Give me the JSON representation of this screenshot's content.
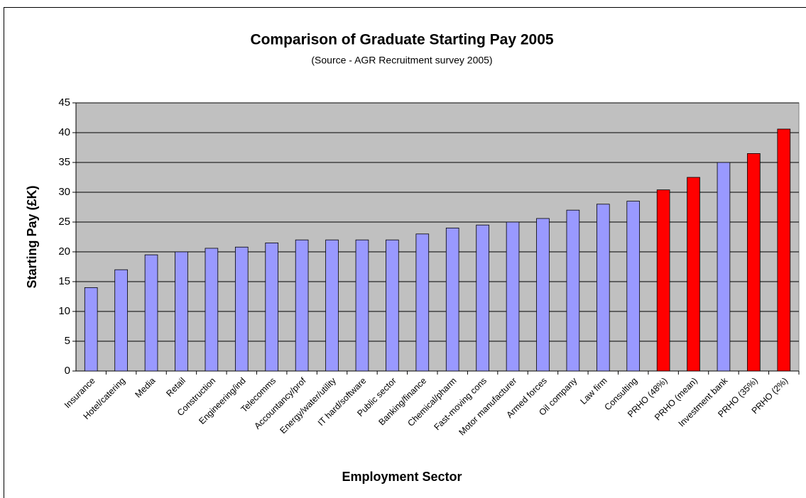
{
  "chart_data": {
    "type": "bar",
    "title": "Comparison of Graduate Starting Pay 2005",
    "subtitle": "(Source - AGR Recruitment survey 2005)",
    "x_label": "Employment Sector",
    "y_label": "Starting Pay (£K)",
    "categories": [
      "Insurance",
      "Hotel/catering",
      "Media",
      "Retail",
      "Construction",
      "Engineering/ind",
      "Telecomms",
      "Accountancy/prof",
      "Energy/water/utility",
      "IT hard/software",
      "Public sector",
      "Banking/finance",
      "Chemical/pharm",
      "Fast-moving cons",
      "Motor manufacturer",
      "Armed forces",
      "Oil company",
      "Law firm",
      "Consulting",
      "PRHO (48%)",
      "PRHO (mean)",
      "Investment bank",
      "PRHO (35%)",
      "PRHO (2%)"
    ],
    "values": [
      14,
      17,
      19.5,
      20,
      20.6,
      20.8,
      21.5,
      22,
      22,
      22,
      22,
      23,
      24,
      24.5,
      25,
      25.6,
      27,
      28,
      28.5,
      30.4,
      32.5,
      35,
      36.5,
      40.6
    ],
    "colors": [
      "#9999ff",
      "#9999ff",
      "#9999ff",
      "#9999ff",
      "#9999ff",
      "#9999ff",
      "#9999ff",
      "#9999ff",
      "#9999ff",
      "#9999ff",
      "#9999ff",
      "#9999ff",
      "#9999ff",
      "#9999ff",
      "#9999ff",
      "#9999ff",
      "#9999ff",
      "#9999ff",
      "#9999ff",
      "#ff0000",
      "#ff0000",
      "#9999ff",
      "#ff0000",
      "#ff0000"
    ],
    "ylim": [
      0,
      45
    ],
    "yticks": [
      0,
      5,
      10,
      15,
      20,
      25,
      30,
      35,
      40,
      45
    ],
    "grid": true
  }
}
